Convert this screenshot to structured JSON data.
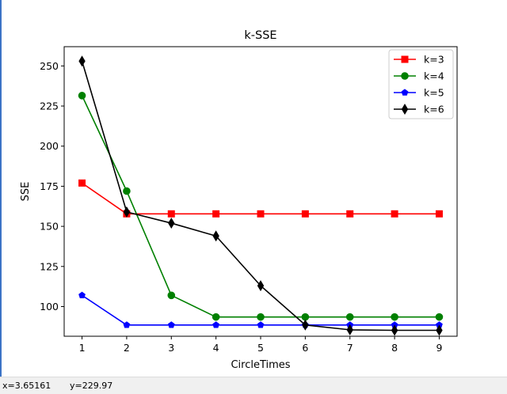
{
  "status": {
    "x_readout": "x=3.65161",
    "y_readout": "y=229.97"
  },
  "chart_data": {
    "type": "line",
    "title": "k-SSE",
    "xlabel": "CircleTimes",
    "ylabel": "SSE",
    "x": [
      1,
      2,
      3,
      4,
      5,
      6,
      7,
      8,
      9
    ],
    "xlim": [
      0.6,
      9.4
    ],
    "ylim": [
      81.5,
      262
    ],
    "xticks": [
      1,
      2,
      3,
      4,
      5,
      6,
      7,
      8,
      9
    ],
    "yticks": [
      100,
      125,
      150,
      175,
      200,
      225,
      250
    ],
    "grid": false,
    "legend_position": "top-right",
    "series": [
      {
        "name": "k=3",
        "color": "#ff0000",
        "marker": "square",
        "values": [
          177,
          157.8,
          157.8,
          157.8,
          157.8,
          157.8,
          157.8,
          157.8,
          157.8
        ]
      },
      {
        "name": "k=4",
        "color": "#008000",
        "marker": "circle",
        "values": [
          231.5,
          172,
          107,
          93.5,
          93.5,
          93.5,
          93.5,
          93.5,
          93.5
        ]
      },
      {
        "name": "k=5",
        "color": "#0000ff",
        "marker": "pentagon",
        "values": [
          107,
          88.5,
          88.5,
          88.5,
          88.5,
          88.5,
          88.5,
          88.5,
          88.5
        ]
      },
      {
        "name": "k=6",
        "color": "#000000",
        "marker": "thin-diamond",
        "values": [
          253,
          159,
          152,
          144,
          113,
          88.5,
          85.5,
          85.2,
          85.2
        ]
      }
    ]
  }
}
